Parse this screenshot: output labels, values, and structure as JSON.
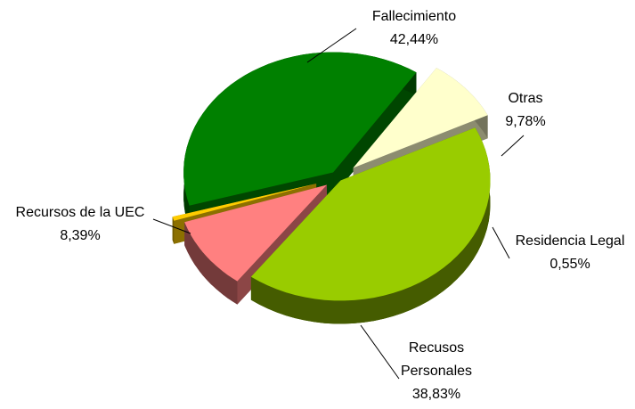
{
  "chart_data": {
    "type": "pie",
    "categories": [
      "Fallecimiento",
      "Otras",
      "Residencia Legal",
      "Recusos Personales",
      "Recursos de la UEC"
    ],
    "values": [
      42.44,
      9.78,
      0.55,
      38.83,
      8.39
    ],
    "value_labels": [
      "42,44%",
      "9,78%",
      "0,55%",
      "38,83%",
      "8,39%"
    ],
    "colors": [
      "#99cc00",
      "#ff8080",
      "#ffcc00",
      "#008000",
      "#ffffcc"
    ]
  }
}
